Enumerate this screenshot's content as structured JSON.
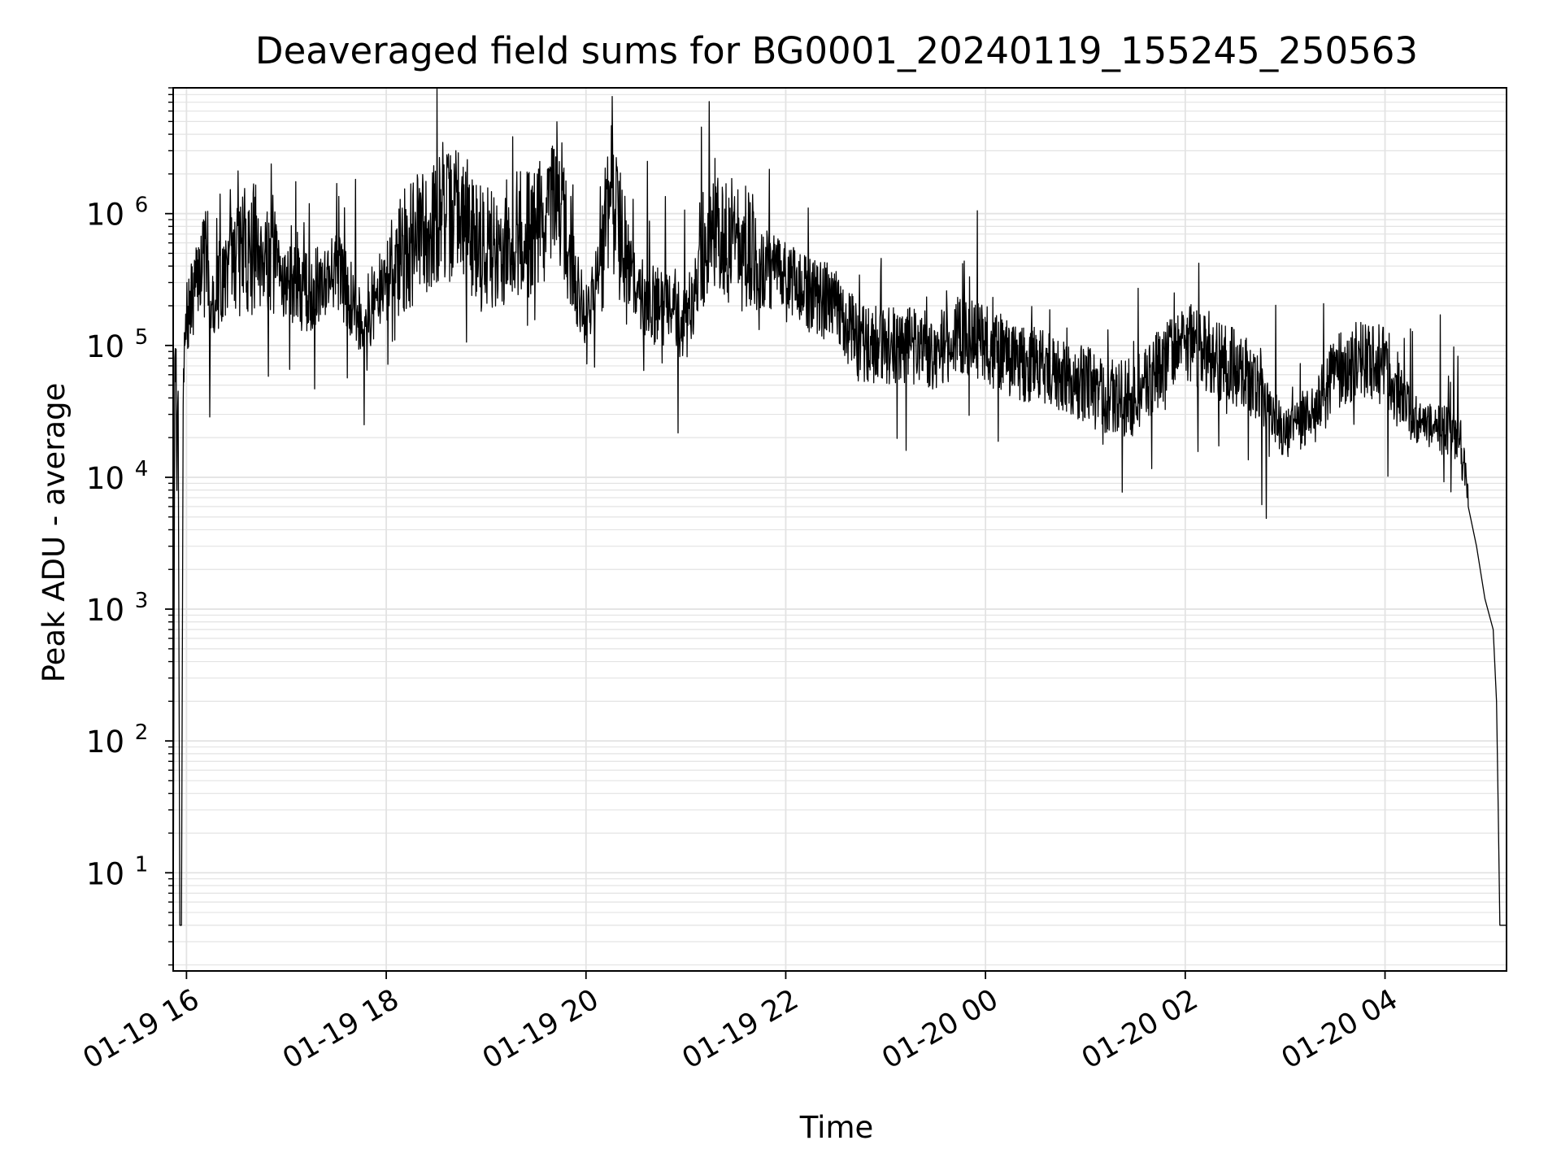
{
  "chart_data": {
    "type": "line",
    "title": "Deaveraged field sums for BG0001_20240119_155245_250563",
    "xlabel": "Time",
    "ylabel": "Peak ADU - average",
    "yscale": "log",
    "ylim": [
      1.8,
      9000000
    ],
    "xlim": [
      "2024-01-19 15:52",
      "2024-01-20 05:13"
    ],
    "grid": "both",
    "legend": "none",
    "line_color": "#000000",
    "grid_color": "#e3e3e3",
    "x_ticks": [
      {
        "t": "2024-01-19 16:00",
        "label": "01-19 16"
      },
      {
        "t": "2024-01-19 18:00",
        "label": "01-19 18"
      },
      {
        "t": "2024-01-19 20:00",
        "label": "01-19 20"
      },
      {
        "t": "2024-01-19 22:00",
        "label": "01-19 22"
      },
      {
        "t": "2024-01-20 00:00",
        "label": "01-20 00"
      },
      {
        "t": "2024-01-20 02:00",
        "label": "01-20 02"
      },
      {
        "t": "2024-01-20 04:00",
        "label": "01-20 04"
      }
    ],
    "y_ticks": [
      {
        "value": 10,
        "base": "10",
        "exp": "1"
      },
      {
        "value": 100,
        "base": "10",
        "exp": "2"
      },
      {
        "value": 1000,
        "base": "10",
        "exp": "3"
      },
      {
        "value": 10000,
        "base": "10",
        "exp": "4"
      },
      {
        "value": 100000,
        "base": "10",
        "exp": "5"
      },
      {
        "value": 1000000,
        "base": "10",
        "exp": "6"
      }
    ],
    "series": [
      {
        "x": [
          "2024-01-19 15:52",
          "2024-01-19 15:53",
          "2024-01-19 15:54",
          "2024-01-19 15:55",
          "2024-01-19 15:56",
          "2024-01-19 15:57",
          "2024-01-19 15:58",
          "2024-01-19 15:59",
          "2024-01-19 16:00",
          "2024-01-19 16:06",
          "2024-01-19 16:10",
          "2024-01-19 16:15",
          "2024-01-19 16:30",
          "2024-01-19 16:45",
          "2024-01-19 17:00",
          "2024-01-19 17:15",
          "2024-01-19 17:30",
          "2024-01-19 17:45",
          "2024-01-19 18:00",
          "2024-01-19 18:15",
          "2024-01-19 18:30",
          "2024-01-19 18:45",
          "2024-01-19 19:00",
          "2024-01-19 19:15",
          "2024-01-19 19:30",
          "2024-01-19 19:45",
          "2024-01-19 20:00",
          "2024-01-19 20:15",
          "2024-01-19 20:30",
          "2024-01-19 20:45",
          "2024-01-19 21:00",
          "2024-01-19 21:15",
          "2024-01-19 21:30",
          "2024-01-19 21:45",
          "2024-01-19 22:00",
          "2024-01-19 22:15",
          "2024-01-19 22:30",
          "2024-01-19 22:45",
          "2024-01-19 23:00",
          "2024-01-19 23:15",
          "2024-01-19 23:30",
          "2024-01-19 23:45",
          "2024-01-20 00:00",
          "2024-01-20 00:15",
          "2024-01-20 00:30",
          "2024-01-20 00:45",
          "2024-01-20 01:00",
          "2024-01-20 01:15",
          "2024-01-20 01:30",
          "2024-01-20 01:45",
          "2024-01-20 02:00",
          "2024-01-20 02:15",
          "2024-01-20 02:30",
          "2024-01-20 02:45",
          "2024-01-20 03:00",
          "2024-01-20 03:15",
          "2024-01-20 03:30",
          "2024-01-20 03:45",
          "2024-01-20 04:00",
          "2024-01-20 04:15",
          "2024-01-20 04:30",
          "2024-01-20 04:45",
          "2024-01-20 04:50",
          "2024-01-20 04:55",
          "2024-01-20 05:00",
          "2024-01-20 05:05",
          "2024-01-20 05:07",
          "2024-01-20 05:08",
          "2024-01-20 05:09",
          "2024-01-20 05:10",
          "2024-01-20 05:11",
          "2024-01-20 05:13"
        ],
        "y": [
          2,
          80000,
          16000,
          45000,
          4,
          4,
          35000,
          100000,
          150000,
          300000,
          500000,
          200000,
          500000,
          600000,
          300000,
          250000,
          400000,
          150000,
          300000,
          600000,
          900000,
          1000000,
          500000,
          600000,
          800000,
          1200000,
          120000,
          1200000,
          250000,
          200000,
          150000,
          900000,
          600000,
          400000,
          300000,
          250000,
          200000,
          100000,
          100000,
          100000,
          90000,
          120000,
          100000,
          80000,
          70000,
          60000,
          50000,
          40000,
          40000,
          70000,
          110000,
          80000,
          70000,
          50000,
          20000,
          30000,
          60000,
          80000,
          70000,
          30000,
          25000,
          20000,
          6000,
          3000,
          1200,
          700,
          200,
          30,
          4,
          4,
          4,
          4
        ]
      }
    ]
  }
}
